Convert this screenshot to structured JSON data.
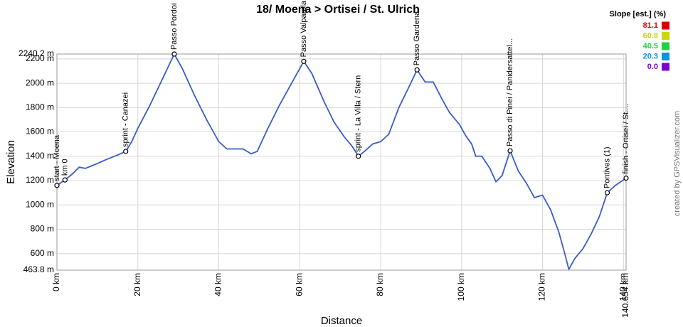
{
  "chart_data": {
    "type": "line",
    "title": "18/ Moena > Ortisei / St. Ulrich",
    "x_label": "Distance",
    "y_label": "Elevation",
    "credit": "created by GPSVisualizer.com",
    "xlim": [
      0,
      140.654
    ],
    "ylim": [
      463.8,
      2240.2
    ],
    "xticks": [
      {
        "value": 0,
        "label": "0 km"
      },
      {
        "value": 20,
        "label": "20 km"
      },
      {
        "value": 40,
        "label": "40 km"
      },
      {
        "value": 60,
        "label": "60 km"
      },
      {
        "value": 80,
        "label": "80 km"
      },
      {
        "value": 100,
        "label": "100 km"
      },
      {
        "value": 120,
        "label": "120 km"
      },
      {
        "value": 140,
        "label": "140 km"
      },
      {
        "value": 140.654,
        "label": "140.654 km"
      }
    ],
    "yticks": [
      {
        "value": 463.8,
        "label": "463.8 m"
      },
      {
        "value": 600,
        "label": "600 m"
      },
      {
        "value": 800,
        "label": "800 m"
      },
      {
        "value": 1000,
        "label": "1000 m"
      },
      {
        "value": 1200,
        "label": "1200 m"
      },
      {
        "value": 1400,
        "label": "1400 m"
      },
      {
        "value": 1600,
        "label": "1600 m"
      },
      {
        "value": 1800,
        "label": "1800 m"
      },
      {
        "value": 2000,
        "label": "2000 m"
      },
      {
        "value": 2200,
        "label": "2200 m"
      },
      {
        "value": 2240.2,
        "label": "2240.2 m"
      }
    ],
    "grid": true,
    "x": [
      0,
      2,
      4,
      5.5,
      7,
      10,
      12,
      15,
      17,
      18.5,
      20,
      23,
      26,
      29,
      31,
      34,
      37,
      40,
      42,
      44,
      46,
      48,
      49.5,
      52,
      55,
      58,
      61,
      63,
      66,
      68.5,
      71,
      73,
      74.5,
      76,
      78,
      80,
      82,
      84.5,
      87,
      89,
      91,
      93,
      95,
      97,
      99.5,
      101,
      102.5,
      103.5,
      105,
      107,
      108.5,
      110,
      112,
      114,
      116,
      118,
      120,
      122,
      124,
      125.5,
      126.5,
      128,
      130,
      132,
      134,
      136,
      138,
      140.654
    ],
    "series": [
      {
        "name": "Elevation",
        "color": "#3a5bc8",
        "values": [
          1160,
          1205,
          1260,
          1310,
          1300,
          1340,
          1370,
          1410,
          1440,
          1520,
          1630,
          1820,
          2030,
          2240,
          2120,
          1900,
          1700,
          1520,
          1460,
          1460,
          1460,
          1420,
          1440,
          1620,
          1820,
          2000,
          2180,
          2080,
          1850,
          1680,
          1560,
          1480,
          1400,
          1440,
          1500,
          1520,
          1580,
          1800,
          1970,
          2110,
          2010,
          2010,
          1880,
          1760,
          1660,
          1570,
          1500,
          1400,
          1400,
          1300,
          1190,
          1240,
          1445,
          1280,
          1180,
          1060,
          1080,
          960,
          780,
          600,
          470,
          560,
          640,
          760,
          900,
          1100,
          1160,
          1220
        ]
      }
    ],
    "waypoints": [
      {
        "name": "start - Moena",
        "x": 0,
        "y": 1160
      },
      {
        "name": "km 0",
        "x": 2,
        "y": 1205
      },
      {
        "name": "sprint - Canazei",
        "x": 17,
        "y": 1440
      },
      {
        "name": "Passo Pordoi",
        "x": 29,
        "y": 2240
      },
      {
        "name": "Passo Valparola",
        "x": 61,
        "y": 2180
      },
      {
        "name": "sprint - La Villa / Stern",
        "x": 74.5,
        "y": 1400
      },
      {
        "name": "Passo Gardena",
        "x": 89,
        "y": 2110
      },
      {
        "name": "Passo di Pinei / Panidersattel...",
        "x": 112,
        "y": 1445
      },
      {
        "name": "Pontives (1)",
        "x": 136,
        "y": 1100
      },
      {
        "name": "finish - Ortisei / St....",
        "x": 140.654,
        "y": 1220
      }
    ],
    "slope_legend": {
      "title": "Slope [est.] (%)",
      "values": [
        81.1,
        60.8,
        40.5,
        20.3,
        0
      ],
      "value_labels": [
        "81.1",
        "60.8",
        "40.5",
        "20.3",
        "0.0"
      ],
      "colors": [
        "#e00000",
        "#c8d800",
        "#20d040",
        "#1090e0",
        "#8000d0"
      ]
    }
  }
}
